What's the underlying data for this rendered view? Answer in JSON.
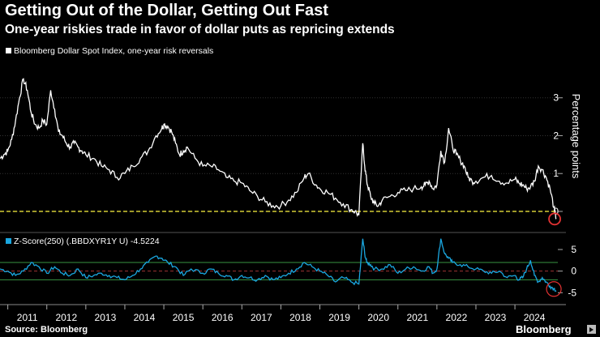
{
  "header": {
    "title": "Getting Out of the Dollar, Getting Out Fast",
    "subtitle": "One-year riskies trade in favor of dollar puts as repricing extends"
  },
  "footer": {
    "source": "Source: Bloomberg",
    "brand": "Bloomberg"
  },
  "colors": {
    "background": "#000000",
    "main_series": "#ffffff",
    "zscore_series": "#1aa7e0",
    "zero_line": "#e8e03a",
    "highlight_circle": "#e23232",
    "band_green": "#3da34a",
    "band_red": "#b03a3a"
  },
  "chart_data": [
    {
      "type": "line",
      "legend": "Bloomberg Dollar Spot Index, one-year risk reversals",
      "ylabel": "Percentage points",
      "x_ticks": [
        "2011",
        "2012",
        "2013",
        "2014",
        "2015",
        "2016",
        "2017",
        "2018",
        "2019",
        "2020",
        "2021",
        "2022",
        "2023",
        "2024"
      ],
      "y_ticks": [
        0,
        1,
        2,
        3
      ],
      "ylim": [
        -0.45,
        3.7
      ],
      "zero_line": 0,
      "series": [
        {
          "x": [
            2010.8,
            2010.9,
            2011.0,
            2011.1,
            2011.2,
            2011.3,
            2011.4,
            2011.5,
            2011.6,
            2011.7,
            2011.8,
            2011.9,
            2012.0,
            2012.1,
            2012.2,
            2012.3,
            2012.4,
            2012.5,
            2012.6,
            2012.7,
            2012.8,
            2012.9,
            2013.0,
            2013.2,
            2013.4,
            2013.6,
            2013.8,
            2014.0,
            2014.2,
            2014.4,
            2014.6,
            2014.8,
            2014.95,
            2015.0,
            2015.1,
            2015.2,
            2015.3,
            2015.4,
            2015.5,
            2015.6,
            2015.8,
            2016.0,
            2016.2,
            2016.4,
            2016.6,
            2016.8,
            2017.0,
            2017.2,
            2017.4,
            2017.6,
            2017.8,
            2018.0,
            2018.2,
            2018.4,
            2018.6,
            2018.7,
            2018.9,
            2019.0,
            2019.2,
            2019.4,
            2019.6,
            2019.8,
            2019.9,
            2020.0,
            2020.1,
            2020.15,
            2020.2,
            2020.25,
            2020.3,
            2020.4,
            2020.5,
            2020.6,
            2020.8,
            2021.0,
            2021.2,
            2021.4,
            2021.6,
            2021.7,
            2021.8,
            2021.9,
            2022.0,
            2022.1,
            2022.2,
            2022.3,
            2022.4,
            2022.5,
            2022.6,
            2022.7,
            2022.8,
            2022.9,
            2023.0,
            2023.2,
            2023.4,
            2023.6,
            2023.8,
            2024.0,
            2024.1,
            2024.2,
            2024.3,
            2024.4,
            2024.5,
            2024.6,
            2024.7,
            2024.8,
            2024.9,
            2025.0,
            2025.06
          ],
          "y": [
            1.4,
            1.5,
            1.6,
            1.9,
            2.4,
            3.0,
            3.5,
            3.2,
            2.6,
            2.3,
            2.2,
            2.4,
            2.3,
            3.2,
            2.7,
            2.1,
            2.0,
            1.8,
            1.7,
            1.8,
            1.7,
            1.6,
            1.5,
            1.4,
            1.2,
            1.1,
            0.9,
            1.0,
            1.2,
            1.4,
            1.6,
            2.0,
            2.2,
            2.3,
            2.25,
            2.1,
            1.8,
            1.5,
            1.6,
            1.7,
            1.4,
            1.2,
            1.2,
            1.1,
            0.9,
            0.8,
            0.75,
            0.55,
            0.4,
            0.25,
            0.15,
            0.15,
            0.3,
            0.5,
            0.9,
            1.0,
            0.7,
            0.6,
            0.5,
            0.35,
            0.2,
            0.05,
            0.0,
            -0.1,
            1.8,
            1.2,
            0.8,
            0.6,
            0.4,
            0.2,
            0.15,
            0.3,
            0.4,
            0.5,
            0.55,
            0.6,
            0.65,
            0.7,
            0.8,
            0.6,
            0.7,
            1.6,
            1.3,
            2.2,
            1.7,
            1.5,
            1.35,
            1.2,
            0.9,
            0.8,
            0.8,
            0.9,
            0.95,
            0.8,
            0.75,
            0.85,
            0.75,
            0.7,
            0.6,
            0.65,
            0.8,
            1.2,
            1.1,
            0.9,
            0.6,
            0.1,
            -0.2
          ]
        }
      ]
    },
    {
      "type": "line",
      "legend": "Z-Score(250) (.BBDXYR1Y U) -4.5224",
      "y_ticks": [
        5,
        0,
        -5
      ],
      "ylim": [
        -7,
        8
      ],
      "bands": [
        2,
        0,
        -2
      ],
      "series": [
        {
          "x": [
            2010.8,
            2011.0,
            2011.2,
            2011.4,
            2011.6,
            2011.8,
            2012.0,
            2012.2,
            2012.4,
            2012.6,
            2012.8,
            2013.0,
            2013.2,
            2013.4,
            2013.6,
            2013.8,
            2014.0,
            2014.2,
            2014.4,
            2014.6,
            2014.8,
            2014.95,
            2015.1,
            2015.3,
            2015.5,
            2015.7,
            2016.0,
            2016.2,
            2016.4,
            2016.6,
            2016.8,
            2017.0,
            2017.2,
            2017.4,
            2017.6,
            2017.8,
            2018.0,
            2018.2,
            2018.4,
            2018.6,
            2018.8,
            2019.0,
            2019.2,
            2019.4,
            2019.6,
            2019.8,
            2020.0,
            2020.1,
            2020.15,
            2020.2,
            2020.3,
            2020.4,
            2020.6,
            2020.8,
            2021.0,
            2021.2,
            2021.4,
            2021.6,
            2021.8,
            2021.9,
            2022.0,
            2022.1,
            2022.2,
            2022.3,
            2022.4,
            2022.6,
            2022.8,
            2023.0,
            2023.2,
            2023.4,
            2023.6,
            2023.8,
            2024.0,
            2024.1,
            2024.2,
            2024.3,
            2024.4,
            2024.5,
            2024.6,
            2024.7,
            2024.8,
            2024.9,
            2025.0,
            2025.06
          ],
          "y": [
            0.5,
            0.0,
            -1.0,
            0.0,
            2.0,
            1.0,
            -0.5,
            1.0,
            -0.5,
            -1.0,
            0.5,
            -1.5,
            -1.0,
            -0.5,
            -1.0,
            -1.5,
            -2.0,
            -1.0,
            0.5,
            2.0,
            3.5,
            3.0,
            2.0,
            1.0,
            -1.0,
            0.5,
            -0.5,
            0.5,
            -0.5,
            -1.0,
            -2.0,
            -1.0,
            -1.5,
            -2.0,
            -1.0,
            -2.0,
            -1.5,
            -0.5,
            0.5,
            2.0,
            1.0,
            0.0,
            -1.0,
            -2.5,
            -1.5,
            -2.5,
            -3.0,
            7.5,
            4.0,
            2.0,
            1.5,
            0.5,
            0.5,
            1.5,
            -0.5,
            0.5,
            1.0,
            0.0,
            1.0,
            -0.5,
            0.5,
            7.5,
            4.0,
            3.0,
            2.0,
            1.5,
            1.0,
            0.5,
            0.0,
            -0.5,
            0.0,
            -1.5,
            -1.0,
            -2.0,
            -1.5,
            0.5,
            2.5,
            -1.0,
            -2.5,
            -1.5,
            -2.5,
            -3.5,
            -4.0,
            -4.5224
          ]
        }
      ]
    }
  ]
}
